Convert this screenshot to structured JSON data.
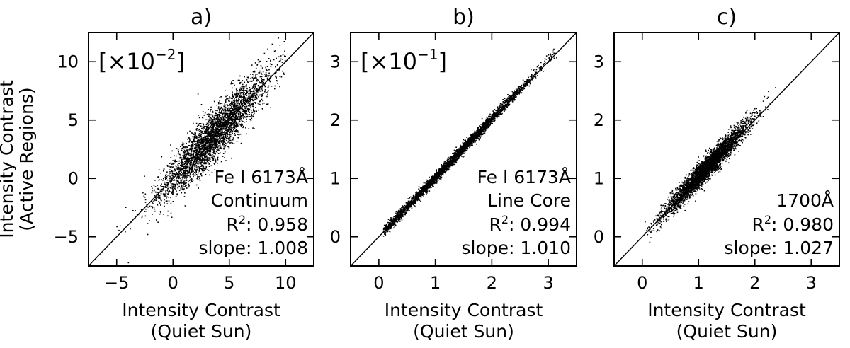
{
  "y_axis_label": {
    "line1": "Intensity Contrast",
    "line2": "(Active Regions)"
  },
  "x_axis_label": {
    "line1": "Intensity Contrast",
    "line2": "(Quiet Sun)"
  },
  "chart_data": [
    {
      "type": "scatter",
      "panel_label": "a)",
      "scale_label": "[×10",
      "scale_exponent": "−2",
      "scale_close": "]",
      "xlim": [
        -7.5,
        12.5
      ],
      "ylim": [
        -7.5,
        12.5
      ],
      "xticks": [
        -5,
        0,
        5,
        10
      ],
      "yticks": [
        -5,
        0,
        5,
        10
      ],
      "xtick_labels": [
        "−5",
        "0",
        "5",
        "10"
      ],
      "ytick_labels": [
        "−5",
        "0",
        "5",
        "10"
      ],
      "reference_line": "y = x",
      "annotation": {
        "line1": "Fe I 6173Å",
        "line2": "Continuum",
        "r2_label": "R",
        "r2_exp": "2",
        "r2_value": ": 0.958",
        "slope_text": "slope: 1.008"
      },
      "r_squared": 0.958,
      "slope": 1.008,
      "sample_points": {
        "count": 3500,
        "x_mean": 3.6,
        "x_std": 2.4,
        "x_min": -5,
        "x_max": 10,
        "noise_std": 1.05
      }
    },
    {
      "type": "scatter",
      "panel_label": "b)",
      "scale_label": "[×10",
      "scale_exponent": "−1",
      "scale_close": "]",
      "xlim": [
        -0.5,
        3.5
      ],
      "ylim": [
        -0.5,
        3.5
      ],
      "xticks": [
        0,
        1,
        2,
        3
      ],
      "yticks": [
        0,
        1,
        2,
        3
      ],
      "xtick_labels": [
        "0",
        "1",
        "2",
        "3"
      ],
      "ytick_labels": [
        "0",
        "1",
        "2",
        "3"
      ],
      "reference_line": "y = x",
      "annotation": {
        "line1": "Fe I 6173Å",
        "line2": "Line Core",
        "r2_label": "R",
        "r2_exp": "2",
        "r2_value": ": 0.994",
        "slope_text": "slope: 1.010"
      },
      "r_squared": 0.994,
      "slope": 1.01,
      "sample_points": {
        "count": 3500,
        "x_mean": 1.3,
        "x_std": 0.7,
        "x_min": 0.08,
        "x_max": 3.15,
        "noise_std": 0.045
      }
    },
    {
      "type": "scatter",
      "panel_label": "c)",
      "scale_label": "",
      "scale_exponent": "",
      "scale_close": "",
      "xlim": [
        -0.5,
        3.5
      ],
      "ylim": [
        -0.5,
        3.5
      ],
      "xticks": [
        0,
        1,
        2,
        3
      ],
      "yticks": [
        0,
        1,
        2,
        3
      ],
      "xtick_labels": [
        "0",
        "1",
        "2",
        "3"
      ],
      "ytick_labels": [
        "0",
        "1",
        "2",
        "3"
      ],
      "reference_line": "y = x",
      "annotation": {
        "line1": "",
        "line2": "1700Å",
        "r2_label": "R",
        "r2_exp": "2",
        "r2_value": ": 0.980",
        "slope_text": "slope: 1.027"
      },
      "r_squared": 0.98,
      "slope": 1.027,
      "sample_points": {
        "count": 3500,
        "x_mean": 1.15,
        "x_std": 0.38,
        "x_min": 0.05,
        "x_max": 2.4,
        "noise_std": 0.1
      }
    }
  ]
}
